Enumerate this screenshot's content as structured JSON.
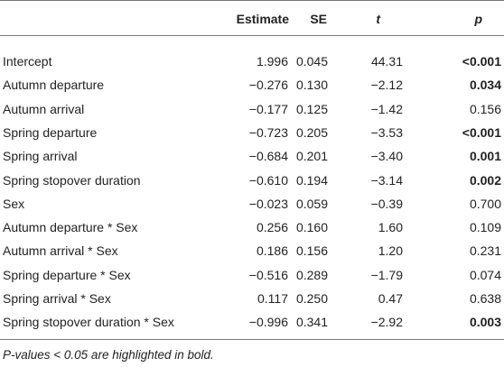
{
  "table": {
    "header": [
      "Estimate",
      "SE",
      "t",
      "p"
    ],
    "rows": [
      {
        "label": "Intercept",
        "estimate": "1.996",
        "se": "0.045",
        "t": "44.31",
        "p": "<0.001",
        "p_bold": true
      },
      {
        "label": "Autumn departure",
        "estimate": "−0.276",
        "se": "0.130",
        "t": "−2.12",
        "p": "0.034",
        "p_bold": true
      },
      {
        "label": "Autumn arrival",
        "estimate": "−0.177",
        "se": "0.125",
        "t": "−1.42",
        "p": "0.156",
        "p_bold": false
      },
      {
        "label": "Spring departure",
        "estimate": "−0.723",
        "se": "0.205",
        "t": "−3.53",
        "p": "<0.001",
        "p_bold": true
      },
      {
        "label": "Spring arrival",
        "estimate": "−0.684",
        "se": "0.201",
        "t": "−3.40",
        "p": "0.001",
        "p_bold": true
      },
      {
        "label": "Spring stopover duration",
        "estimate": "−0.610",
        "se": "0.194",
        "t": "−3.14",
        "p": "0.002",
        "p_bold": true
      },
      {
        "label": "Sex",
        "estimate": "−0.023",
        "se": "0.059",
        "t": "−0.39",
        "p": "0.700",
        "p_bold": false
      },
      {
        "label": "Autumn departure * Sex",
        "estimate": "0.256",
        "se": "0.160",
        "t": "1.60",
        "p": "0.109",
        "p_bold": false
      },
      {
        "label": "Autumn arrival * Sex",
        "estimate": "0.186",
        "se": "0.156",
        "t": "1.20",
        "p": "0.231",
        "p_bold": false
      },
      {
        "label": "Spring departure * Sex",
        "estimate": "−0.516",
        "se": "0.289",
        "t": "−1.79",
        "p": "0.074",
        "p_bold": false
      },
      {
        "label": "Spring arrival * Sex",
        "estimate": "0.117",
        "se": "0.250",
        "t": "0.47",
        "p": "0.638",
        "p_bold": false
      },
      {
        "label": "Spring stopover duration * Sex",
        "estimate": "−0.996",
        "se": "0.341",
        "t": "−2.92",
        "p": "0.003",
        "p_bold": true
      }
    ],
    "footnote": "P-values < 0.05 are highlighted in bold."
  }
}
